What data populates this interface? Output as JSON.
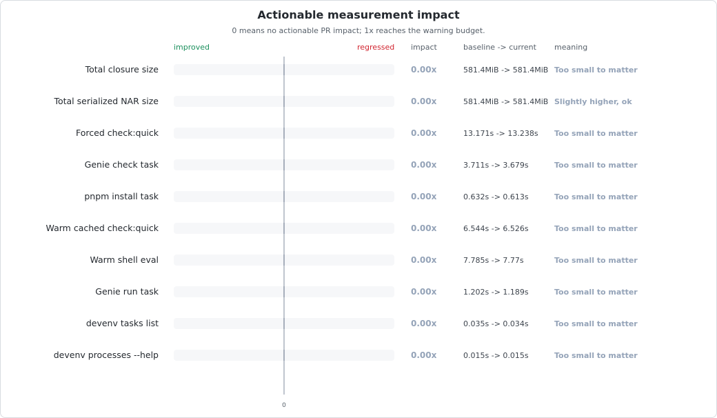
{
  "chart_data": {
    "type": "bar",
    "title": "Actionable measurement impact",
    "subtitle": "0 means no actionable PR impact; 1x reaches the warning budget.",
    "left_label": "improved",
    "right_label": "regressed",
    "column_headers": {
      "impact": "impact",
      "change": "baseline -> current",
      "meaning": "meaning"
    },
    "x_ticks": [
      "0"
    ],
    "xlim": [
      -1,
      1
    ],
    "categories": [
      "Total closure size",
      "Total serialized NAR size",
      "Forced check:quick",
      "Genie check task",
      "pnpm install task",
      "Warm cached check:quick",
      "Warm shell eval",
      "Genie run task",
      "devenv tasks list",
      "devenv processes --help"
    ],
    "values": [
      0,
      0,
      0,
      0,
      0,
      0,
      0,
      0,
      0,
      0
    ],
    "impact_labels": [
      "0.00x",
      "0.00x",
      "0.00x",
      "0.00x",
      "0.00x",
      "0.00x",
      "0.00x",
      "0.00x",
      "0.00x",
      "0.00x"
    ],
    "changes": [
      "581.4MiB -> 581.4MiB",
      "581.4MiB -> 581.4MiB",
      "13.171s -> 13.238s",
      "3.711s -> 3.679s",
      "0.632s -> 0.613s",
      "6.544s -> 6.526s",
      "7.785s -> 7.77s",
      "1.202s -> 1.189s",
      "0.035s -> 0.034s",
      "0.015s -> 0.015s"
    ],
    "meanings": [
      "Too small to matter",
      "Slightly higher, ok",
      "Too small to matter",
      "Too small to matter",
      "Too small to matter",
      "Too small to matter",
      "Too small to matter",
      "Too small to matter",
      "Too small to matter",
      "Too small to matter"
    ],
    "colors": {
      "improved": "#1a8f5c",
      "regressed": "#d1242f",
      "muted": "#94a3b8"
    }
  }
}
